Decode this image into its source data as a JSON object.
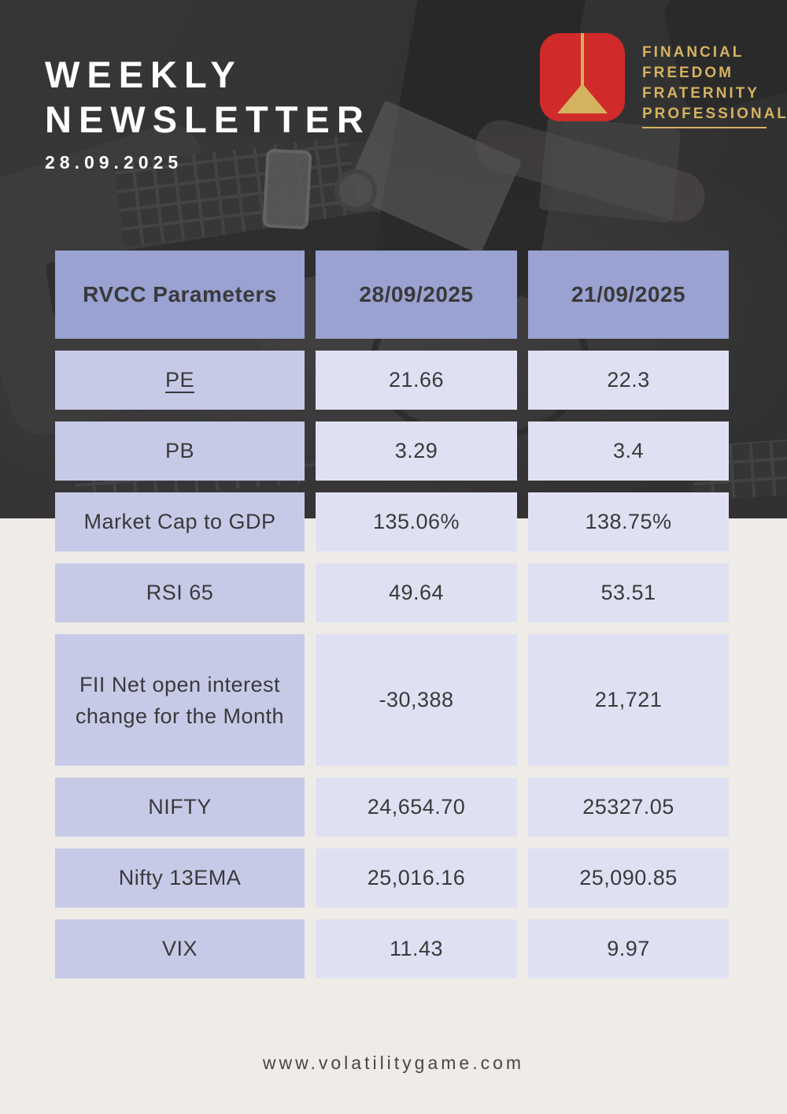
{
  "hero": {
    "title_line1": "WEEKLY",
    "title_line2": "NEWSLETTER",
    "date": "28.09.2025"
  },
  "logo": {
    "lines": [
      "FINANCIAL",
      "FREEDOM",
      "FRATERNITY",
      "PROFESSIONAL"
    ],
    "mark_icon": "plumb-pendulum-icon",
    "colors": {
      "red": "#d02a2a",
      "gold": "#d4b25f"
    }
  },
  "table": {
    "headers": [
      "RVCC Parameters",
      "28/09/2025",
      "21/09/2025"
    ],
    "rows": [
      {
        "param": "PE",
        "underline": true,
        "v1": "21.66",
        "v2": "22.3"
      },
      {
        "param": "PB",
        "v1": "3.29",
        "v2": "3.4"
      },
      {
        "param": "Market Cap to GDP",
        "v1": "135.06%",
        "v2": "138.75%"
      },
      {
        "param": "RSI 65",
        "v1": "49.64",
        "v2": "53.51"
      },
      {
        "param": "FII Net open interest change for the Month",
        "tall": true,
        "v1": "-30,388",
        "v2": "21,721"
      },
      {
        "param": "NIFTY",
        "v1": "24,654.70",
        "v2": "25327.05"
      },
      {
        "param": "Nifty 13EMA",
        "v1": "25,016.16",
        "v2": "25,090.85"
      },
      {
        "param": "VIX",
        "v1": "11.43",
        "v2": "9.97"
      }
    ],
    "colors": {
      "header_bg": "#9aa2d1",
      "param_bg": "#c7cae7",
      "value_bg": "#dfe1f2",
      "text": "#3a393b"
    }
  },
  "footer": {
    "link": "www.volatilitygame.com"
  },
  "page_colors": {
    "hero_bg": "#3a3939",
    "body_bg": "#efece7"
  }
}
